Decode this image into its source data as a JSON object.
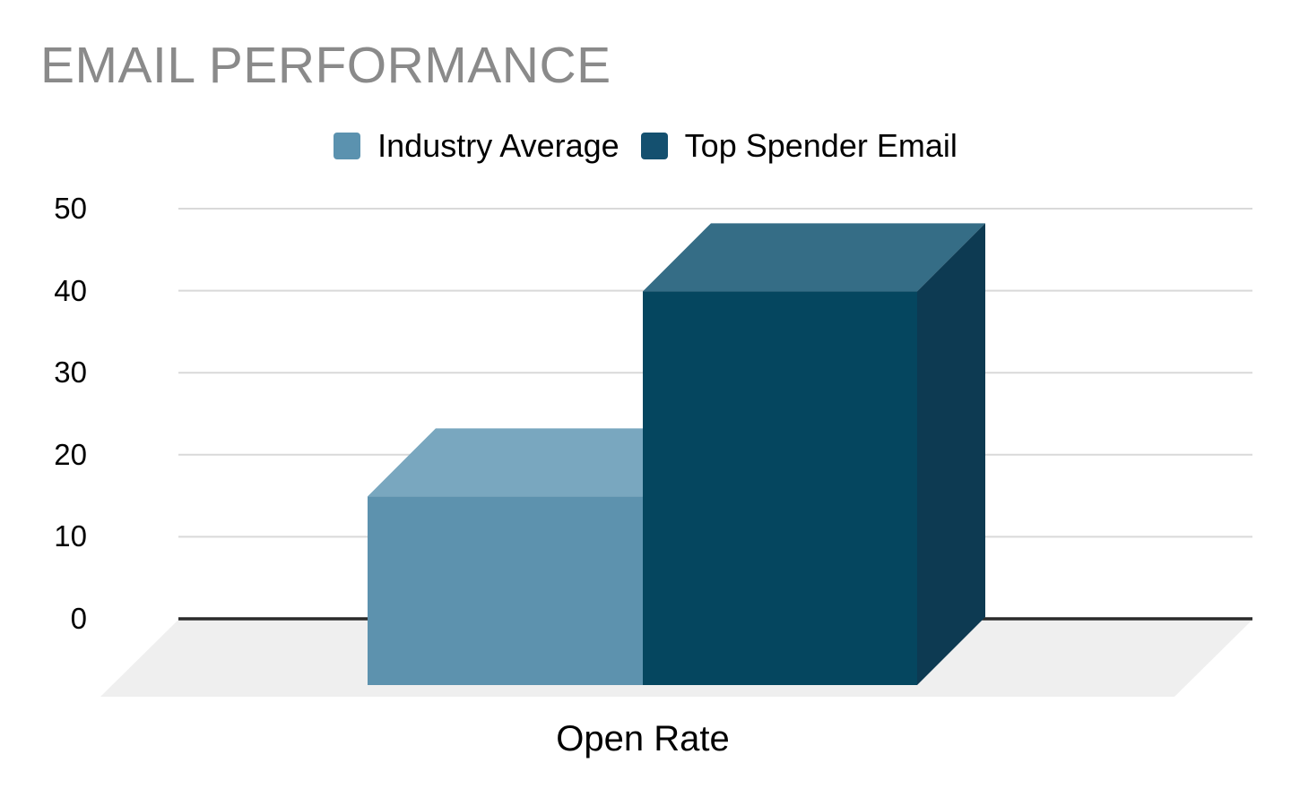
{
  "title": {
    "text": "EMAIL PERFORMANCE",
    "color": "#8a8a8a"
  },
  "legend": [
    {
      "label": "Industry Average",
      "color": "#5b92af"
    },
    {
      "label": "Top Spender Email",
      "color": "#14506f"
    }
  ],
  "chart_data": {
    "type": "bar",
    "style": "3d-column",
    "title": "EMAIL PERFORMANCE",
    "categories": [
      "Open Rate"
    ],
    "series": [
      {
        "name": "Industry Average",
        "values": [
          23
        ],
        "colors": {
          "front": "#5d92ae",
          "top": "#79a7bf",
          "side": "#40749b"
        }
      },
      {
        "name": "Top Spender Email",
        "values": [
          48
        ],
        "colors": {
          "front": "#05465f",
          "top": "#356d86",
          "side": "#0d3a52"
        }
      }
    ],
    "xlabel": "",
    "ylabel": "",
    "yticks": [
      0,
      10,
      20,
      30,
      40,
      50
    ],
    "ylim": [
      0,
      50
    ],
    "grid": true,
    "legend_position": "top",
    "colors": {
      "gridline": "#d9d9d9",
      "baseline": "#2a2a2a",
      "floor": "#efefef",
      "tick_text": "#000000"
    }
  }
}
